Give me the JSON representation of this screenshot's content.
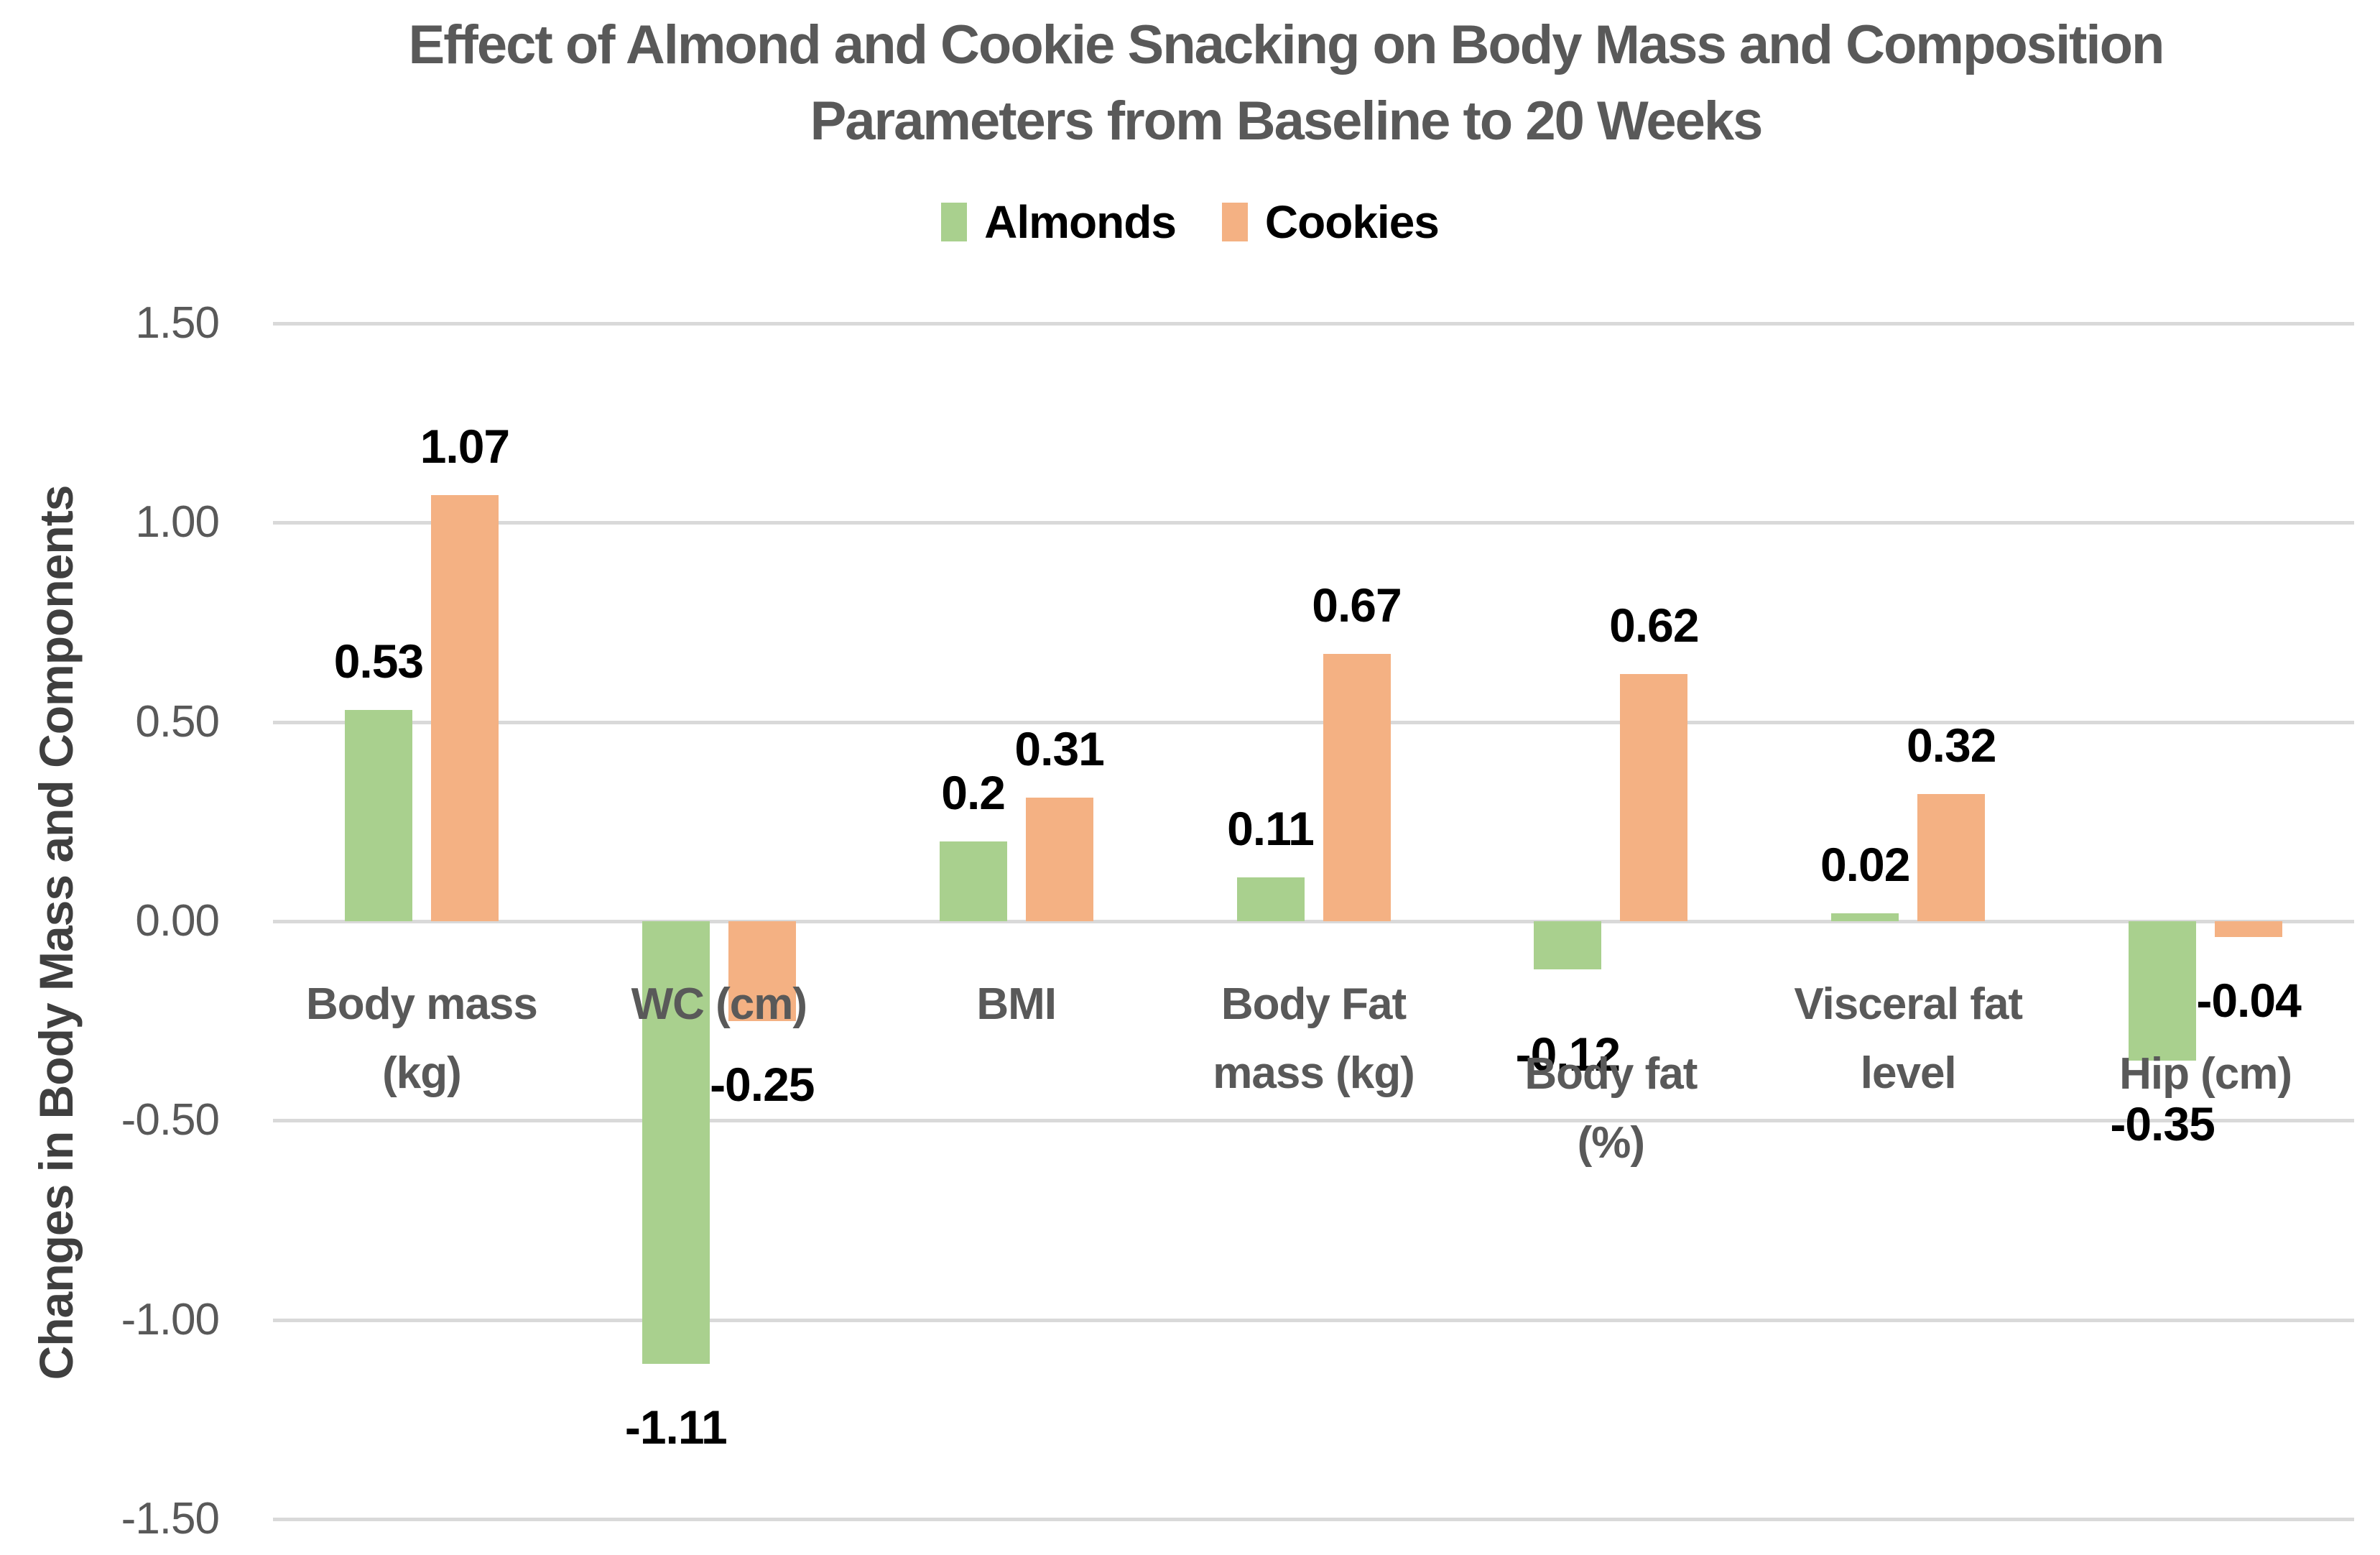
{
  "title": {
    "lines": [
      "Effect of Almond and Cookie Snacking on Body Mass and Composition",
      "Parameters from Baseline to 20 Weeks"
    ]
  },
  "legend": {
    "items": [
      {
        "label": "Almonds",
        "color": "#A9D08E"
      },
      {
        "label": "Cookies",
        "color": "#F4B183"
      }
    ]
  },
  "y_axis": {
    "title": "Changes in Body Mass and Components",
    "ticks": [
      "1.50",
      "1.00",
      "0.50",
      "0.00",
      "-0.50",
      "-1.00",
      "-1.50"
    ]
  },
  "chart_data": {
    "type": "bar",
    "title": "Effect of Almond and Cookie Snacking on Body Mass and Composition Parameters from Baseline to 20 Weeks",
    "ylabel": "Changes in Body Mass and Components",
    "xlabel": "",
    "ylim": [
      -1.5,
      1.5
    ],
    "ytick_step": 0.5,
    "grid": true,
    "legend_position": "top",
    "categories": [
      "Body mass (kg)",
      "WC (cm)",
      "BMI",
      "Body Fat mass (kg)",
      "Body fat (%)",
      "Visceral fat level",
      "Hip (cm)"
    ],
    "category_label_lines": [
      [
        "Body mass",
        "(kg)"
      ],
      [
        "WC (cm)"
      ],
      [
        "BMI"
      ],
      [
        "Body Fat",
        "mass (kg)"
      ],
      [
        "Body fat",
        "(%)"
      ],
      [
        "Visceral fat",
        "level"
      ],
      [
        "Hip (cm)"
      ]
    ],
    "series": [
      {
        "name": "Almonds",
        "color": "#A9D08E",
        "values": [
          0.53,
          -1.11,
          0.2,
          0.11,
          -0.12,
          0.02,
          -0.35
        ],
        "labels": [
          "0.53",
          "-1.11",
          "0.2",
          "0.11",
          "-0.12",
          "0.02",
          "-0.35"
        ]
      },
      {
        "name": "Cookies",
        "color": "#F4B183",
        "values": [
          1.07,
          -0.25,
          0.31,
          0.67,
          0.62,
          0.32,
          -0.04
        ],
        "labels": [
          "1.07",
          "-0.25",
          "0.31",
          "0.67",
          "0.62",
          "0.32",
          "-0.04"
        ]
      }
    ],
    "gridline_color": "#D9D9D9",
    "text_colors": {
      "title": "#595959",
      "tick_labels": "#595959",
      "category_labels": "#595959",
      "data_labels": "#000000",
      "axis_title": "#3F3F3F"
    }
  }
}
